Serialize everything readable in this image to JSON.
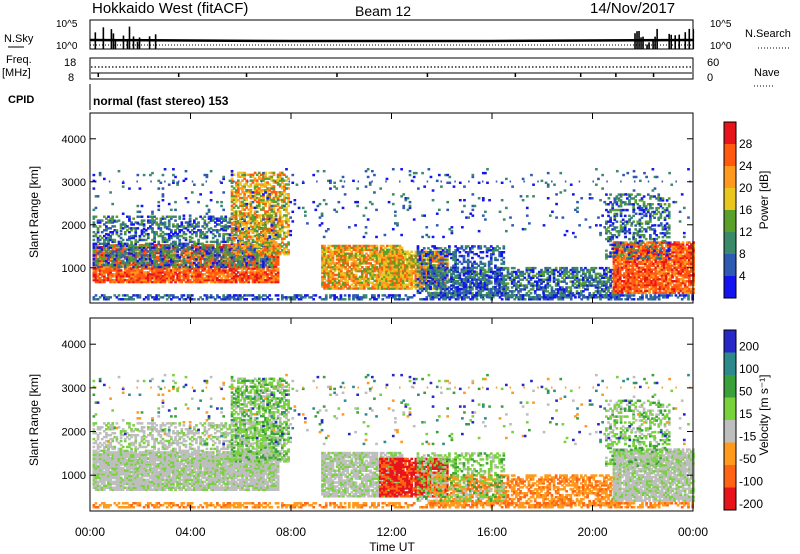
{
  "header": {
    "title": "Hokkaido West (fitACF)",
    "beam": "Beam 12",
    "date": "14/Nov/2017"
  },
  "top_panels": {
    "nsky_label": "N.Sky",
    "nsearch_label": "N.Search",
    "noise_ticks": [
      "10^5",
      "10^0"
    ],
    "freq_label_1": "Freq.",
    "freq_label_2": "[MHz]",
    "freq_ticks": [
      "18",
      "8"
    ],
    "nave_ticks": [
      "60",
      "0"
    ],
    "nave_label": "Nave",
    "cpid_label": "CPID",
    "cpid_text": "normal (fast stereo) 153"
  },
  "chart_data": [
    {
      "type": "heatmap",
      "name": "power",
      "ylabel": "Slant Range [km]",
      "yticks": [
        "4000",
        "3000",
        "2000",
        "1000"
      ],
      "y_values": [
        4000,
        3000,
        2000,
        1000
      ],
      "ylim": [
        180,
        4600
      ],
      "xlim_hours": [
        0,
        24
      ],
      "colorbar": {
        "label": "Power [dB]",
        "ticks": [
          "28",
          "24",
          "20",
          "16",
          "12",
          "8",
          "4"
        ],
        "colors": [
          "#e8141c",
          "#ff5a10",
          "#ff9a1e",
          "#e8c81e",
          "#5aa02a",
          "#3a8a6a",
          "#2e5ab2",
          "#1414f0"
        ]
      }
    },
    {
      "type": "heatmap",
      "name": "velocity",
      "ylabel": "Slant Range [km]",
      "yticks": [
        "4000",
        "3000",
        "2000",
        "1000"
      ],
      "y_values": [
        4000,
        3000,
        2000,
        1000
      ],
      "ylim": [
        180,
        4600
      ],
      "xlim_hours": [
        0,
        24
      ],
      "colorbar": {
        "label": "Velocity [m s⁻¹]",
        "ticks": [
          "200",
          "100",
          "50",
          "15",
          "-15",
          "-50",
          "-100",
          "-200"
        ],
        "colors": [
          "#2828c8",
          "#2e8a8a",
          "#3aa03a",
          "#78d23c",
          "#bebebe",
          "#ff9a1e",
          "#ff6414",
          "#e8141c"
        ]
      }
    }
  ],
  "xaxis": {
    "ticks": [
      "00:00",
      "04:00",
      "08:00",
      "12:00",
      "16:00",
      "20:00",
      "00:00"
    ],
    "hours": [
      0,
      4,
      8,
      12,
      16,
      20,
      24
    ],
    "label": "Time UT"
  }
}
